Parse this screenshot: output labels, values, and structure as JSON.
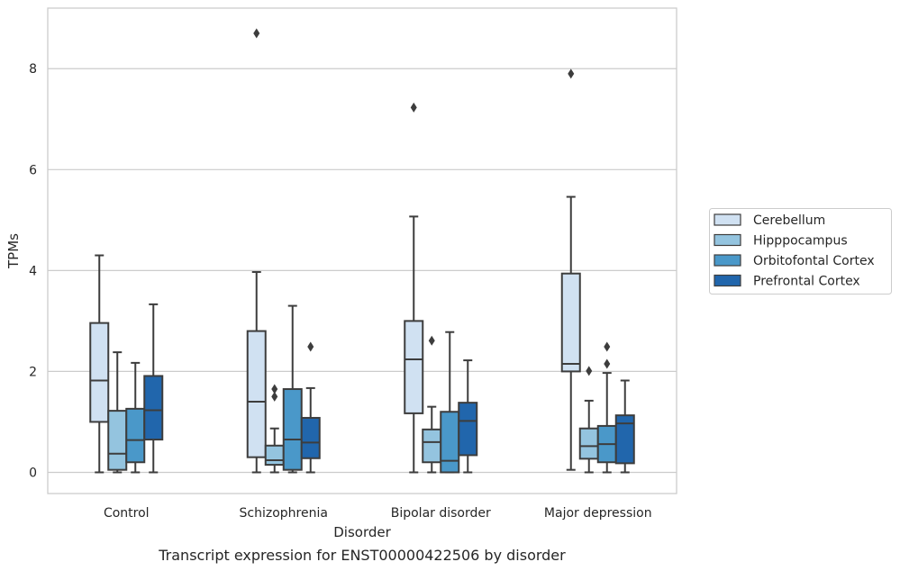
{
  "chart_data": {
    "type": "box",
    "title": "",
    "caption": "Transcript expression for ENST00000422506 by disorder",
    "xlabel": "Disorder",
    "ylabel": "TPMs",
    "ylim": [
      -0.42,
      9.2
    ],
    "yticks": [
      0,
      2,
      4,
      6,
      8
    ],
    "ytick_labels": [
      "0",
      "2",
      "4",
      "6",
      "8"
    ],
    "grid": "horizontal",
    "categories": [
      "Control",
      "Schizophrenia",
      "Bipolar disorder",
      "Major depression"
    ],
    "legend_position": "right",
    "series": [
      {
        "name": "Cerebellum",
        "color": "#d0e1f2",
        "boxes": [
          {
            "whisker_low": 0,
            "q1": 1.0,
            "median": 1.82,
            "q3": 2.96,
            "whisker_high": 4.3,
            "outliers": []
          },
          {
            "whisker_low": 0,
            "q1": 0.3,
            "median": 1.4,
            "q3": 2.8,
            "whisker_high": 3.97,
            "outliers": [
              8.7
            ]
          },
          {
            "whisker_low": 0,
            "q1": 1.17,
            "median": 2.24,
            "q3": 3.0,
            "whisker_high": 5.07,
            "outliers": [
              7.23
            ]
          },
          {
            "whisker_low": 0.05,
            "q1": 2.0,
            "median": 2.15,
            "q3": 3.94,
            "whisker_high": 5.46,
            "outliers": [
              7.9
            ]
          }
        ]
      },
      {
        "name": "Hipppocampus",
        "color": "#94c4df",
        "boxes": [
          {
            "whisker_low": 0,
            "q1": 0.05,
            "median": 0.37,
            "q3": 1.22,
            "whisker_high": 2.38,
            "outliers": []
          },
          {
            "whisker_low": 0,
            "q1": 0.15,
            "median": 0.24,
            "q3": 0.53,
            "whisker_high": 0.87,
            "outliers": [
              1.5,
              1.65
            ]
          },
          {
            "whisker_low": 0,
            "q1": 0.2,
            "median": 0.6,
            "q3": 0.85,
            "whisker_high": 1.3,
            "outliers": [
              2.61
            ]
          },
          {
            "whisker_low": 0,
            "q1": 0.27,
            "median": 0.52,
            "q3": 0.87,
            "whisker_high": 1.42,
            "outliers": [
              2.01
            ]
          }
        ]
      },
      {
        "name": "Orbitofontal Cortex",
        "color": "#4a98c9",
        "boxes": [
          {
            "whisker_low": 0,
            "q1": 0.2,
            "median": 0.64,
            "q3": 1.26,
            "whisker_high": 2.17,
            "outliers": []
          },
          {
            "whisker_low": 0,
            "q1": 0.05,
            "median": 0.65,
            "q3": 1.65,
            "whisker_high": 3.3,
            "outliers": []
          },
          {
            "whisker_low": 0,
            "q1": 0.0,
            "median": 0.23,
            "q3": 1.2,
            "whisker_high": 2.78,
            "outliers": []
          },
          {
            "whisker_low": 0,
            "q1": 0.2,
            "median": 0.56,
            "q3": 0.92,
            "whisker_high": 1.97,
            "outliers": [
              2.15,
              2.49
            ]
          }
        ]
      },
      {
        "name": "Prefrontal Cortex",
        "color": "#2166ac",
        "boxes": [
          {
            "whisker_low": 0,
            "q1": 0.65,
            "median": 1.23,
            "q3": 1.91,
            "whisker_high": 3.33,
            "outliers": []
          },
          {
            "whisker_low": 0,
            "q1": 0.28,
            "median": 0.59,
            "q3": 1.08,
            "whisker_high": 1.67,
            "outliers": [
              2.49
            ]
          },
          {
            "whisker_low": 0,
            "q1": 0.34,
            "median": 1.02,
            "q3": 1.38,
            "whisker_high": 2.22,
            "outliers": []
          },
          {
            "whisker_low": 0,
            "q1": 0.18,
            "median": 0.97,
            "q3": 1.13,
            "whisker_high": 1.82,
            "outliers": []
          }
        ]
      }
    ]
  }
}
